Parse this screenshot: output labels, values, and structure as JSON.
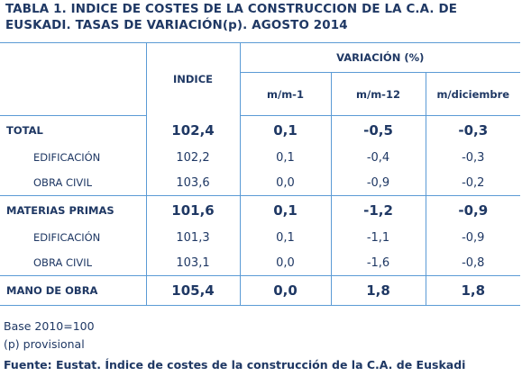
{
  "title": {
    "line1": "TABLA 1. INDICE DE COSTES DE LA CONSTRUCCION DE LA C.A. DE",
    "line2": "EUSKADI. TASAS DE VARIACIÓN(p). AGOSTO 2014"
  },
  "header": {
    "indice": "INDICE",
    "variacion": "VARIACIÓN (%)",
    "mm1": "m/m-1",
    "mm12": "m/m-12",
    "mdic": "m/diciembre"
  },
  "rows": [
    {
      "label": "TOTAL",
      "indice": "102,4",
      "mm1": "0,1",
      "mm12": "-0,5",
      "mdic": "-0,3"
    },
    {
      "label": "EDIFICACIÓN",
      "indice": "102,2",
      "mm1": "0,1",
      "mm12": "-0,4",
      "mdic": "-0,3"
    },
    {
      "label": "OBRA CIVIL",
      "indice": "103,6",
      "mm1": "0,0",
      "mm12": "-0,9",
      "mdic": "-0,2"
    },
    {
      "label": "MATERIAS PRIMAS",
      "indice": "101,6",
      "mm1": "0,1",
      "mm12": "-1,2",
      "mdic": "-0,9"
    },
    {
      "label": "EDIFICACIÓN",
      "indice": "101,3",
      "mm1": "0,1",
      "mm12": "-1,1",
      "mdic": "-0,9"
    },
    {
      "label": "OBRA CIVIL",
      "indice": "103,1",
      "mm1": "0,0",
      "mm12": "-1,6",
      "mdic": "-0,8"
    },
    {
      "label": "MANO DE OBRA",
      "indice": "105,4",
      "mm1": "0,0",
      "mm12": "1,8",
      "mdic": "1,8"
    }
  ],
  "notes": {
    "base": "Base 2010=100",
    "provisional": "(p) provisional",
    "source": "Fuente: Eustat. Índice de costes de la construcción de la C.A. de Euskadi"
  },
  "colors": {
    "text": "#1f3864",
    "rule": "#5b9bd5"
  }
}
